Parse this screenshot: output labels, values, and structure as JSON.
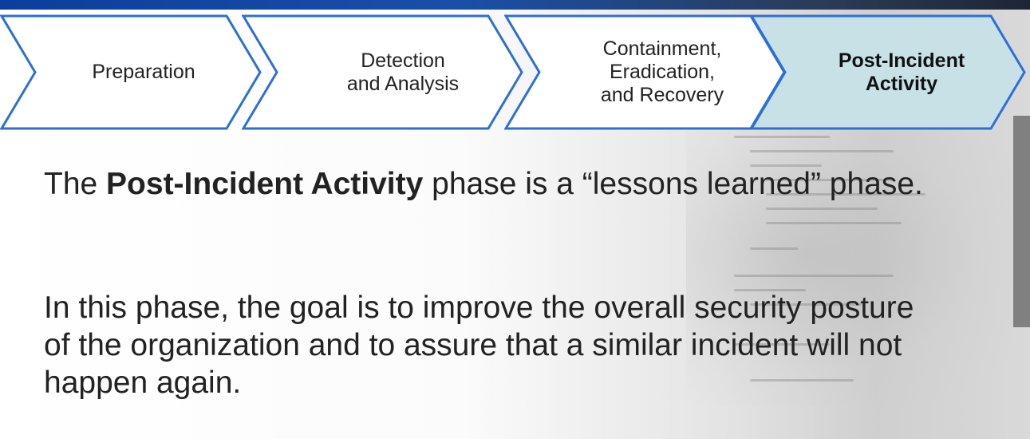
{
  "process": {
    "steps": [
      {
        "label": "Preparation",
        "active": false
      },
      {
        "label": "Detection\nand Analysis",
        "active": false
      },
      {
        "label": "Containment,\nEradication,\nand Recovery",
        "active": false
      },
      {
        "label": "Post-Incident\nActivity",
        "active": true
      }
    ],
    "colors": {
      "outline": "#2e6fd6",
      "active_fill": "#c7e1e6",
      "inactive_fill": "#ffffff"
    }
  },
  "content": {
    "p1_before": "The ",
    "p1_bold": "Post-Incident Activity",
    "p1_after": " phase is a “lessons learned” phase.",
    "p2": "In this phase, the goal is to improve the overall security posture of the organization and to assure that a similar incident will not happen again."
  }
}
